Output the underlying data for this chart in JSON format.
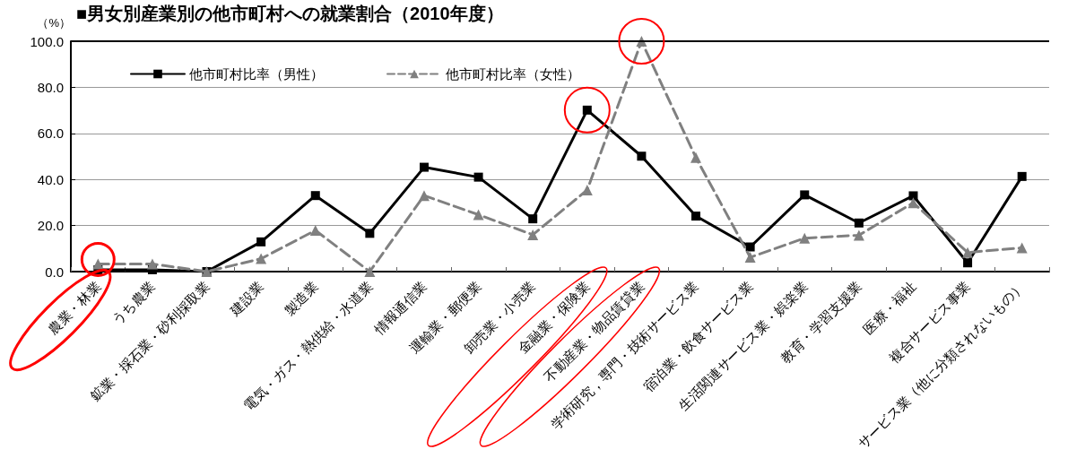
{
  "chart_data": {
    "type": "line",
    "title": "■男女別産業別の他市町村への就業割合（2010年度）",
    "ylabel": "（%）",
    "categories": [
      "農業・林業",
      "うち農業",
      "鉱業・採石業・砂利採取業",
      "建設業",
      "製造業",
      "電気・ガス・熱供給・水道業",
      "情報通信業",
      "運輸業・郵便業",
      "卸売業・小売業",
      "金融業・保険業",
      "不動産業・物品賃貸業",
      "学術研究，専門・技術サービス業",
      "宿泊業・飲食サービス業",
      "生活関連サービス業・娯楽業",
      "教育・学習支援業",
      "医療・福祉",
      "複合サービス事業",
      "サービス業（他に分類されないもの）"
    ],
    "series": [
      {
        "name": "他市町村比率（男性）",
        "color": "#000000",
        "marker": "square",
        "line_style": "solid",
        "values": [
          0.8,
          0.8,
          0,
          12.9,
          33.0,
          16.6,
          45.3,
          41.0,
          22.9,
          70.1,
          50.1,
          24.1,
          10.7,
          33.3,
          21.1,
          32.9,
          3.8,
          41.3
        ]
      },
      {
        "name": "他市町村比率（女性）",
        "color": "#808080",
        "marker": "triangle",
        "line_style": "dashed",
        "values": [
          3.3,
          3.3,
          0,
          5.6,
          17.9,
          0,
          33.0,
          24.7,
          16.0,
          35.4,
          100,
          49.5,
          6.2,
          14.5,
          15.8,
          29.9,
          8.3,
          10.3
        ]
      }
    ],
    "ylim": [
      0,
      100
    ],
    "yticks": [
      {
        "value": 0,
        "label": "0.0"
      },
      {
        "value": 20,
        "label": "20.0"
      },
      {
        "value": 40,
        "label": "40.0"
      },
      {
        "value": 60,
        "label": "60.0"
      },
      {
        "value": 80,
        "label": "80.0"
      },
      {
        "value": 100,
        "label": "100.0"
      }
    ],
    "grid": "y",
    "legend": "top left"
  }
}
